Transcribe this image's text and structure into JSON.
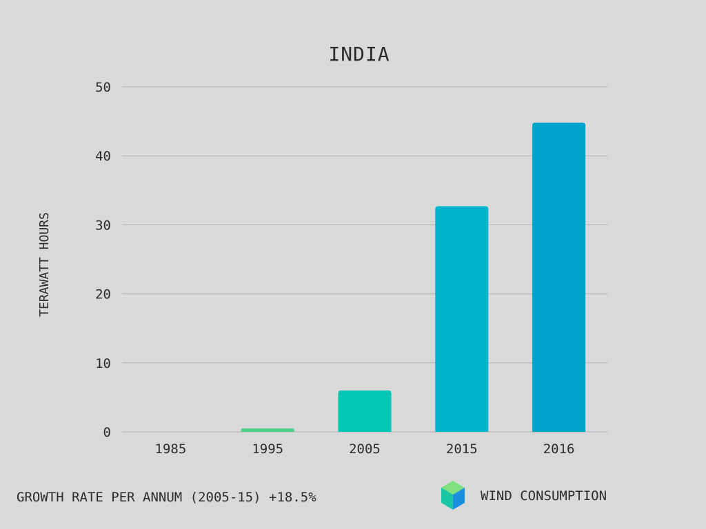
{
  "chart_data": {
    "type": "bar",
    "title": "INDIA",
    "ylabel": "TERAWATT HOURS",
    "xlabel": "",
    "categories": [
      "1985",
      "1995",
      "2005",
      "2015",
      "2016"
    ],
    "values": [
      0,
      0.5,
      6,
      32.7,
      44.8
    ],
    "bar_colors": [
      "#4ecf87",
      "#4ecf87",
      "#00c7b5",
      "#00b4cc",
      "#00a3c9"
    ],
    "ylim": [
      0,
      50
    ],
    "yticks": [
      0,
      10,
      20,
      30,
      40,
      50
    ],
    "ytick_labels": [
      "0",
      "10",
      "20",
      "30",
      "40",
      "50"
    ],
    "grid": true
  },
  "footer": {
    "growth_text": "GROWTH RATE PER ANNUM (2005-15) +18.5%",
    "legend_label": "WIND CONSUMPTION",
    "legend_icon": "cube-icon",
    "legend_colors": {
      "top": "#7fe07f",
      "left": "#19c7a6",
      "right": "#1a8fe0"
    }
  }
}
